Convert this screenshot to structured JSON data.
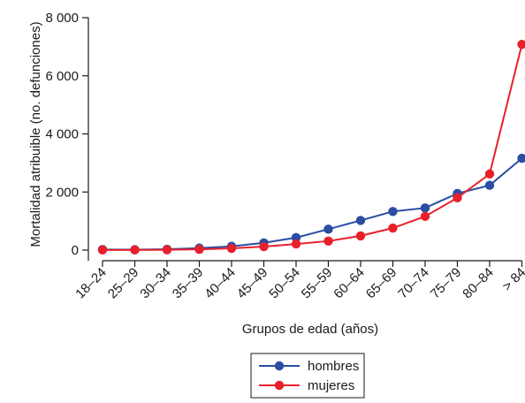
{
  "chart_data": {
    "type": "line",
    "xlabel": "Grupos de edad (años)",
    "ylabel": "Mortalidad atribuible (no. defunciones)",
    "ylim": [
      0,
      8000
    ],
    "yticks": [
      0,
      2000,
      4000,
      6000,
      8000
    ],
    "ytick_labels": [
      "0",
      "2 000",
      "4 000",
      "6 000",
      "8 000"
    ],
    "categories": [
      "18–24",
      "25–29",
      "30–34",
      "35–39",
      "40–44",
      "45–49",
      "50–54",
      "55–59",
      "60–64",
      "65–69",
      "70–74",
      "75–79",
      "80–84",
      "> 84"
    ],
    "grid": false,
    "legend_position": "bottom-center",
    "series": [
      {
        "name": "hombres",
        "color": "#2b4ea2",
        "values": [
          20,
          15,
          30,
          70,
          130,
          250,
          430,
          720,
          1020,
          1330,
          1450,
          1950,
          2230,
          3160
        ]
      },
      {
        "name": "mujeres",
        "color": "#e8202a",
        "values": [
          5,
          5,
          10,
          25,
          60,
          120,
          210,
          310,
          490,
          760,
          1160,
          1800,
          2620,
          7080
        ]
      }
    ]
  }
}
